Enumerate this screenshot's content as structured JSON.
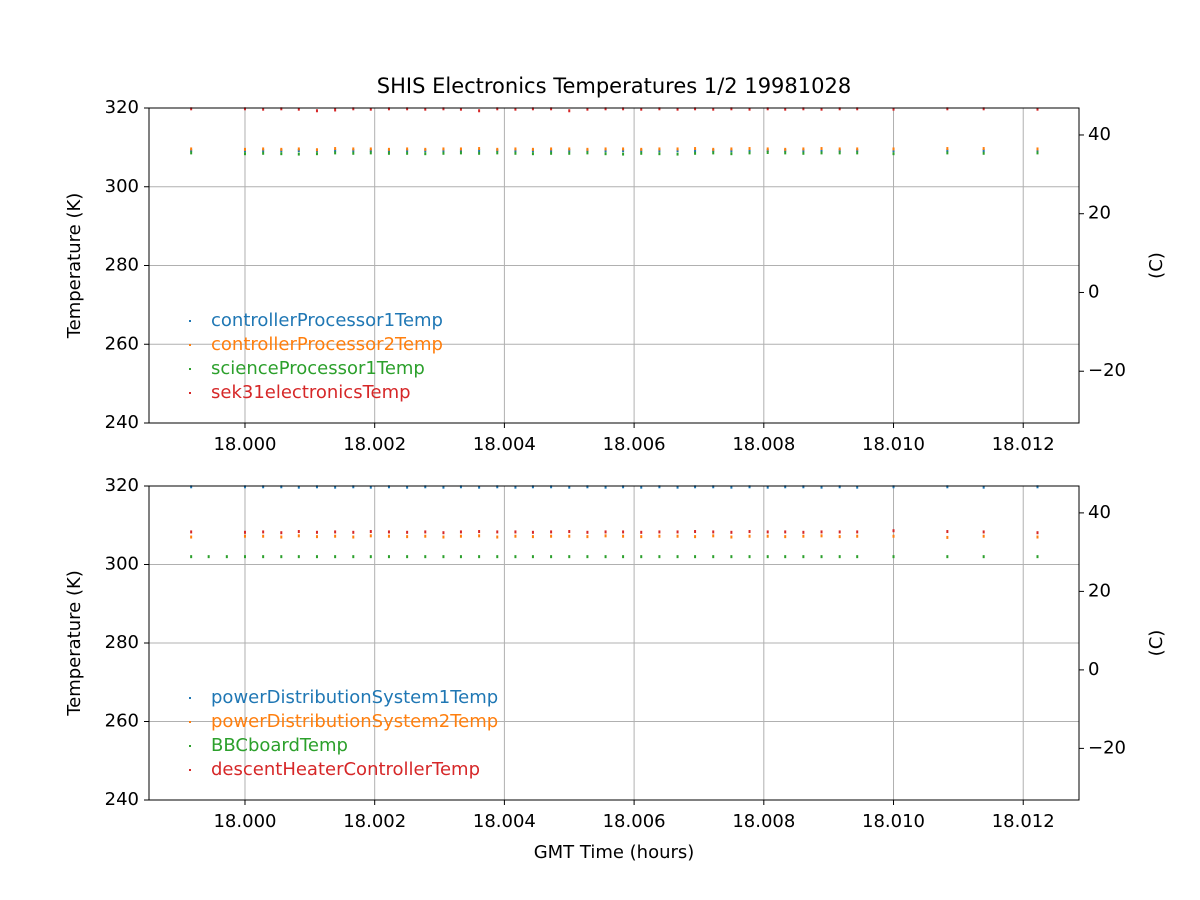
{
  "chart_data": [
    {
      "type": "scatter",
      "title": "SHIS Electronics Temperatures 1/2 19981028",
      "ylabel": "Temperature (K)",
      "y2label": "(C)",
      "x": [
        17.99917,
        18.0,
        18.00028,
        18.00056,
        18.00083,
        18.00111,
        18.00139,
        18.00167,
        18.00194,
        18.00222,
        18.0025,
        18.00278,
        18.00306,
        18.00333,
        18.00361,
        18.00389,
        18.00417,
        18.00444,
        18.00472,
        18.005,
        18.00528,
        18.00556,
        18.00583,
        18.00611,
        18.00639,
        18.00667,
        18.00694,
        18.00722,
        18.0075,
        18.00778,
        18.00806,
        18.00833,
        18.00861,
        18.00889,
        18.00917,
        18.00944,
        18.01,
        18.01083,
        18.01139,
        18.01222
      ],
      "series": [
        {
          "name": "controllerProcessor1Temp",
          "color": "#1f77b4",
          "values": [
            309.2,
            309.2,
            309.2,
            309.2,
            309.2,
            309.2,
            309.2,
            309.2,
            309.2,
            309.2,
            309.2,
            309.2,
            309.2,
            309.2,
            309.2,
            309.2,
            309.2,
            309.2,
            309.2,
            309.2,
            309.2,
            309.2,
            309.2,
            309.2,
            309.2,
            309.2,
            309.2,
            309.2,
            309.2,
            309.2,
            309.2,
            309.2,
            309.2,
            309.2,
            309.2,
            309.2,
            309.2,
            309.2,
            309.2,
            309.2
          ]
        },
        {
          "name": "controllerProcessor2Temp",
          "color": "#ff7f0e",
          "values": [
            309.6,
            309.5,
            309.6,
            309.5,
            309.6,
            309.4,
            309.7,
            309.6,
            309.6,
            309.5,
            309.6,
            309.5,
            309.6,
            309.6,
            309.7,
            309.5,
            309.6,
            309.5,
            309.6,
            309.6,
            309.5,
            309.6,
            309.6,
            309.5,
            309.6,
            309.6,
            309.7,
            309.5,
            309.6,
            309.7,
            309.6,
            309.5,
            309.6,
            309.7,
            309.6,
            309.6,
            309.6,
            309.7,
            309.7,
            309.6
          ]
        },
        {
          "name": "scienceProcessor1Temp",
          "color": "#2ca02c",
          "values": [
            308.6,
            308.4,
            308.5,
            308.4,
            308.3,
            308.4,
            308.6,
            308.5,
            308.6,
            308.5,
            308.5,
            308.4,
            308.5,
            308.6,
            308.5,
            308.6,
            308.5,
            308.4,
            308.5,
            308.5,
            308.6,
            308.4,
            308.3,
            308.5,
            308.4,
            308.3,
            308.5,
            308.6,
            308.4,
            308.6,
            308.7,
            308.6,
            308.5,
            308.6,
            308.6,
            308.6,
            308.4,
            308.6,
            308.5,
            308.6
          ]
        },
        {
          "name": "sek31electronicsTemp",
          "color": "#d62728",
          "values": [
            319.8,
            319.8,
            319.7,
            319.8,
            319.7,
            319.3,
            319.5,
            319.8,
            319.7,
            319.8,
            319.8,
            319.7,
            319.8,
            319.7,
            319.3,
            319.8,
            319.7,
            319.8,
            319.8,
            319.3,
            319.7,
            319.8,
            319.8,
            319.7,
            319.8,
            319.7,
            319.8,
            319.7,
            319.8,
            319.7,
            319.8,
            319.7,
            319.8,
            319.7,
            319.8,
            319.8,
            319.7,
            319.8,
            319.8,
            319.7
          ]
        }
      ],
      "xlim": [
        17.99852,
        18.01286
      ],
      "ylim": [
        240,
        320
      ],
      "y2lim": [
        -33.15,
        46.85
      ],
      "xticks": [
        {
          "value": 18.0,
          "label": "18.000"
        },
        {
          "value": 18.002,
          "label": "18.002"
        },
        {
          "value": 18.004,
          "label": "18.004"
        },
        {
          "value": 18.006,
          "label": "18.006"
        },
        {
          "value": 18.008,
          "label": "18.008"
        },
        {
          "value": 18.01,
          "label": "18.010"
        },
        {
          "value": 18.012,
          "label": "18.012"
        }
      ],
      "yticks": [
        240,
        260,
        280,
        300,
        320
      ],
      "y2ticks": [
        {
          "value": -20,
          "label": "−20"
        },
        0,
        20,
        40
      ],
      "grid": true,
      "legend": "lower left"
    },
    {
      "type": "scatter",
      "ylabel": "Temperature (K)",
      "y2label": "(C)",
      "xlabel": "GMT Time (hours)",
      "x": [
        17.99917,
        17.99944,
        17.99972,
        18.0,
        18.00028,
        18.00056,
        18.00083,
        18.00111,
        18.00139,
        18.00167,
        18.00194,
        18.00222,
        18.0025,
        18.00278,
        18.00306,
        18.00333,
        18.00361,
        18.00389,
        18.00417,
        18.00444,
        18.00472,
        18.005,
        18.00528,
        18.00556,
        18.00583,
        18.00611,
        18.00639,
        18.00667,
        18.00694,
        18.00722,
        18.0075,
        18.00778,
        18.00806,
        18.00833,
        18.00861,
        18.00889,
        18.00917,
        18.00944,
        18.01,
        18.01083,
        18.01139,
        18.01222
      ],
      "series": [
        {
          "name": "powerDistributionSystem1Temp",
          "color": "#1f77b4",
          "values": [
            319.8,
            null,
            null,
            319.8,
            319.8,
            319.8,
            319.7,
            319.8,
            319.7,
            319.8,
            319.7,
            319.8,
            319.7,
            319.8,
            319.7,
            319.8,
            319.7,
            319.8,
            319.7,
            319.8,
            319.8,
            319.7,
            319.8,
            319.7,
            319.8,
            319.7,
            319.8,
            319.7,
            319.8,
            319.8,
            319.7,
            319.8,
            319.7,
            319.8,
            319.8,
            319.7,
            319.8,
            319.7,
            319.8,
            319.8,
            319.7,
            319.8
          ]
        },
        {
          "name": "powerDistributionSystem2Temp",
          "color": "#ff7f0e",
          "values": [
            307.0,
            null,
            null,
            307.2,
            307.2,
            307.0,
            307.3,
            307.1,
            307.2,
            307.0,
            307.3,
            307.2,
            307.1,
            307.2,
            307.0,
            307.2,
            307.3,
            307.0,
            307.2,
            307.1,
            307.2,
            307.2,
            307.1,
            307.3,
            307.2,
            307.1,
            307.2,
            307.2,
            307.1,
            307.3,
            307.0,
            307.2,
            307.2,
            307.1,
            307.2,
            307.3,
            307.1,
            307.2,
            307.2,
            306.9,
            307.2,
            307.0
          ]
        },
        {
          "name": "BBCboardTemp",
          "color": "#2ca02c",
          "values": [
            302.0,
            302.0,
            302.0,
            302.0,
            302.0,
            302.0,
            302.0,
            302.0,
            302.0,
            302.0,
            302.0,
            302.0,
            302.0,
            302.0,
            302.0,
            302.0,
            302.0,
            302.0,
            302.0,
            302.0,
            302.0,
            302.0,
            302.0,
            302.0,
            302.0,
            302.0,
            302.0,
            302.0,
            302.0,
            302.0,
            302.0,
            302.0,
            302.0,
            302.0,
            302.0,
            302.0,
            302.0,
            302.0,
            302.0,
            302.0,
            302.0,
            302.0
          ]
        },
        {
          "name": "descentHeaterControllerTemp",
          "color": "#d62728",
          "values": [
            308.3,
            null,
            null,
            308.2,
            308.3,
            308.1,
            308.4,
            308.2,
            308.3,
            308.2,
            308.4,
            308.3,
            308.2,
            308.3,
            308.1,
            308.3,
            308.4,
            308.3,
            308.3,
            308.2,
            308.3,
            308.4,
            308.2,
            308.3,
            308.3,
            308.2,
            308.3,
            308.3,
            308.4,
            308.3,
            308.2,
            308.4,
            308.3,
            308.3,
            308.2,
            308.3,
            308.3,
            308.3,
            308.6,
            308.4,
            308.3,
            308.1
          ]
        }
      ],
      "xlim": [
        17.99852,
        18.01286
      ],
      "ylim": [
        240,
        320
      ],
      "y2lim": [
        -33.15,
        46.85
      ],
      "xticks": [
        {
          "value": 18.0,
          "label": "18.000"
        },
        {
          "value": 18.002,
          "label": "18.002"
        },
        {
          "value": 18.004,
          "label": "18.004"
        },
        {
          "value": 18.006,
          "label": "18.006"
        },
        {
          "value": 18.008,
          "label": "18.008"
        },
        {
          "value": 18.01,
          "label": "18.010"
        },
        {
          "value": 18.012,
          "label": "18.012"
        }
      ],
      "yticks": [
        240,
        260,
        280,
        300,
        320
      ],
      "y2ticks": [
        {
          "value": -20,
          "label": "−20"
        },
        0,
        20,
        40
      ],
      "grid": true,
      "legend": "lower left"
    }
  ]
}
